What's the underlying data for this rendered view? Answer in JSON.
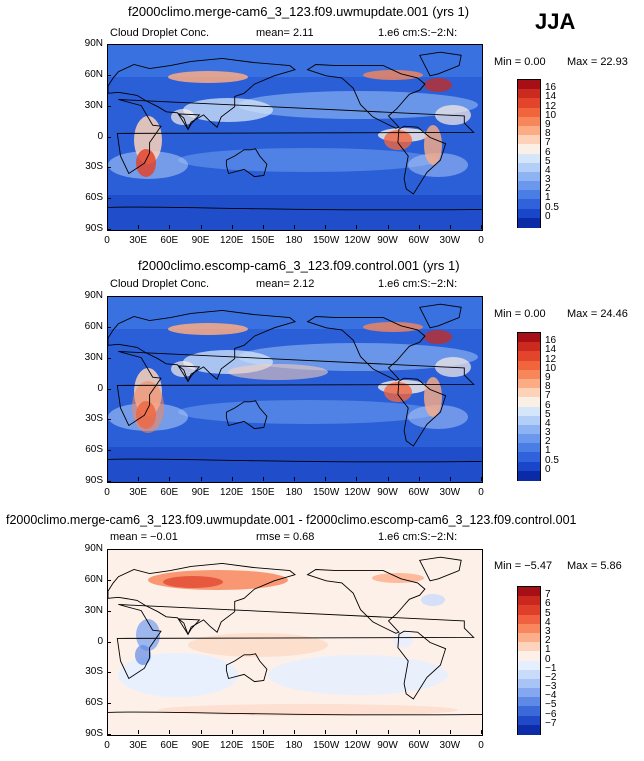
{
  "season_label": "JJA",
  "x_ticks": [
    "0",
    "30E",
    "60E",
    "90E",
    "120E",
    "150E",
    "180",
    "150W",
    "120W",
    "90W",
    "60W",
    "30W",
    "0"
  ],
  "y_ticks": [
    "90N",
    "60N",
    "30N",
    "0",
    "30S",
    "60S",
    "90S"
  ],
  "panels": [
    {
      "title": "f2000climo.merge-cam6_3_123.f09.uwmupdate.001 (yrs 1)",
      "left_label": "Cloud Droplet Conc.",
      "stat_text": "mean=     2.11",
      "units": "1.e6 cm:S:−2:N:",
      "min_text": "Min =     0.00",
      "max_text": "Max =   22.93",
      "levels": [
        "16",
        "14",
        "12",
        "10",
        "9",
        "8",
        "7",
        "6",
        "5",
        "4",
        "3",
        "2",
        "1",
        "0.5",
        "0"
      ],
      "colors": [
        "#a50f15",
        "#cb2a1e",
        "#e2442c",
        "#f0653c",
        "#f7875a",
        "#fcac84",
        "#fdd2b8",
        "#fbf0e6",
        "#d6e6fa",
        "#b3cef7",
        "#8db3f2",
        "#6b98ec",
        "#4b7ee5",
        "#2f62db",
        "#1a46c9",
        "#0b2aa6"
      ],
      "mode": "abs"
    },
    {
      "title": "f2000climo.escomp-cam6_3_123.f09.control.001 (yrs 1)",
      "left_label": "Cloud Droplet Conc.",
      "stat_text": "mean=     2.12",
      "units": "1.e6 cm:S:−2:N:",
      "min_text": "Min =     0.00",
      "max_text": "Max =   24.46",
      "levels": [
        "16",
        "14",
        "12",
        "10",
        "9",
        "8",
        "7",
        "6",
        "5",
        "4",
        "3",
        "2",
        "1",
        "0.5",
        "0"
      ],
      "colors": [
        "#a50f15",
        "#cb2a1e",
        "#e2442c",
        "#f0653c",
        "#f7875a",
        "#fcac84",
        "#fdd2b8",
        "#fbf0e6",
        "#d6e6fa",
        "#b3cef7",
        "#8db3f2",
        "#6b98ec",
        "#4b7ee5",
        "#2f62db",
        "#1a46c9",
        "#0b2aa6"
      ],
      "mode": "abs"
    },
    {
      "title": "f2000climo.merge-cam6_3_123.f09.uwmupdate.001 - f2000climo.escomp-cam6_3_123.f09.control.001",
      "left_label": "mean =    −0.01",
      "stat_text": "rmse =     0.68",
      "units": "1.e6 cm:S:−2:N:",
      "min_text": "Min =   −5.47",
      "max_text": "Max =     5.86",
      "levels": [
        "7",
        "6",
        "5",
        "4",
        "3",
        "2",
        "1",
        "0",
        "−1",
        "−2",
        "−3",
        "−4",
        "−5",
        "−6",
        "−7"
      ],
      "colors": [
        "#a50f15",
        "#c8281d",
        "#df3f2a",
        "#ef6140",
        "#f8875d",
        "#fcad8a",
        "#fdd3bd",
        "#fdf0e8",
        "#e6efff",
        "#c9dbfb",
        "#a8c3f6",
        "#84a7ef",
        "#5f89e6",
        "#3b69da",
        "#1f49c7",
        "#0c2ca8"
      ],
      "mode": "diff"
    }
  ],
  "chart_data": [
    {
      "type": "heatmap",
      "title": "f2000climo.merge-cam6_3_123.f09.uwmupdate.001 (yrs 1)",
      "variable": "Cloud Droplet Conc.",
      "units": "1.e6 cm:S:−2:N:",
      "season": "JJA",
      "mean": 2.11,
      "min": 0.0,
      "max": 22.93,
      "xlim": [
        "0",
        "0"
      ],
      "ylim": [
        "90S",
        "90N"
      ],
      "contour_levels": [
        0,
        0.5,
        1,
        2,
        3,
        4,
        5,
        6,
        7,
        8,
        9,
        10,
        12,
        14,
        16
      ]
    },
    {
      "type": "heatmap",
      "title": "f2000climo.escomp-cam6_3_123.f09.control.001 (yrs 1)",
      "variable": "Cloud Droplet Conc.",
      "units": "1.e6 cm:S:−2:N:",
      "season": "JJA",
      "mean": 2.12,
      "min": 0.0,
      "max": 24.46,
      "xlim": [
        "0",
        "0"
      ],
      "ylim": [
        "90S",
        "90N"
      ],
      "contour_levels": [
        0,
        0.5,
        1,
        2,
        3,
        4,
        5,
        6,
        7,
        8,
        9,
        10,
        12,
        14,
        16
      ]
    },
    {
      "type": "heatmap",
      "title": "f2000climo.merge-cam6_3_123.f09.uwmupdate.001 - f2000climo.escomp-cam6_3_123.f09.control.001",
      "units": "1.e6 cm:S:−2:N:",
      "season": "JJA",
      "mean": -0.01,
      "rmse": 0.68,
      "min": -5.47,
      "max": 5.86,
      "xlim": [
        "0",
        "0"
      ],
      "ylim": [
        "90S",
        "90N"
      ],
      "contour_levels": [
        -7,
        -6,
        -5,
        -4,
        -3,
        -2,
        -1,
        0,
        1,
        2,
        3,
        4,
        5,
        6,
        7
      ]
    }
  ]
}
